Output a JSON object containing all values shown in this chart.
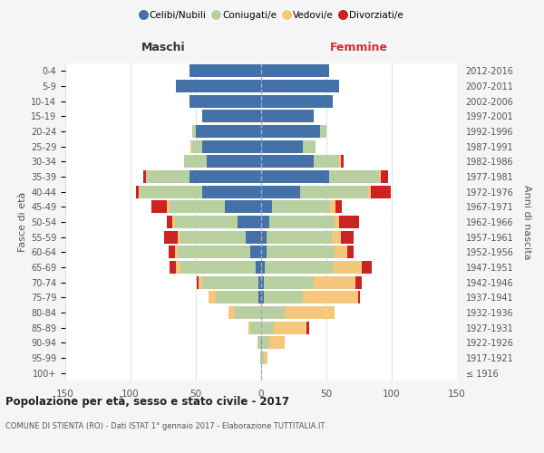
{
  "age_groups": [
    "100+",
    "95-99",
    "90-94",
    "85-89",
    "80-84",
    "75-79",
    "70-74",
    "65-69",
    "60-64",
    "55-59",
    "50-54",
    "45-49",
    "40-44",
    "35-39",
    "30-34",
    "25-29",
    "20-24",
    "15-19",
    "10-14",
    "5-9",
    "0-4"
  ],
  "birth_years": [
    "≤ 1916",
    "1917-1921",
    "1922-1926",
    "1927-1931",
    "1932-1936",
    "1937-1941",
    "1942-1946",
    "1947-1951",
    "1952-1956",
    "1957-1961",
    "1962-1966",
    "1967-1971",
    "1972-1976",
    "1977-1981",
    "1982-1986",
    "1987-1991",
    "1992-1996",
    "1997-2001",
    "2002-2006",
    "2007-2011",
    "2012-2016"
  ],
  "males": {
    "celibi": [
      0,
      0,
      0,
      0,
      0,
      2,
      2,
      4,
      8,
      12,
      18,
      28,
      45,
      55,
      42,
      45,
      50,
      45,
      55,
      65,
      55
    ],
    "coniugati": [
      0,
      1,
      3,
      8,
      20,
      33,
      43,
      58,
      56,
      50,
      48,
      42,
      48,
      33,
      17,
      8,
      3,
      0,
      0,
      0,
      0
    ],
    "vedovi": [
      0,
      0,
      0,
      2,
      5,
      5,
      3,
      3,
      2,
      2,
      2,
      2,
      1,
      0,
      0,
      1,
      0,
      0,
      0,
      0,
      0
    ],
    "divorziati": [
      0,
      0,
      0,
      0,
      0,
      0,
      1,
      5,
      5,
      10,
      4,
      12,
      2,
      2,
      0,
      0,
      0,
      0,
      0,
      0,
      0
    ]
  },
  "females": {
    "nubili": [
      0,
      0,
      1,
      0,
      0,
      2,
      2,
      3,
      4,
      4,
      6,
      8,
      30,
      52,
      40,
      32,
      45,
      40,
      55,
      60,
      52
    ],
    "coniugate": [
      0,
      2,
      5,
      10,
      18,
      30,
      38,
      52,
      52,
      50,
      50,
      45,
      52,
      38,
      20,
      10,
      5,
      0,
      0,
      0,
      0
    ],
    "vedove": [
      1,
      3,
      12,
      25,
      38,
      42,
      32,
      22,
      10,
      7,
      4,
      4,
      2,
      2,
      1,
      0,
      0,
      0,
      0,
      0,
      0
    ],
    "divorziate": [
      0,
      0,
      0,
      2,
      0,
      2,
      5,
      8,
      5,
      10,
      15,
      5,
      15,
      5,
      2,
      0,
      0,
      0,
      0,
      0,
      0
    ]
  },
  "colors": {
    "celibi": "#4472a8",
    "coniugati": "#b8cfa0",
    "vedovi": "#f5c77a",
    "divorziati": "#cc2222"
  },
  "title": "Popolazione per età, sesso e stato civile - 2017",
  "subtitle": "COMUNE DI STIENTA (RO) - Dati ISTAT 1° gennaio 2017 - Elaborazione TUTTITALIA.IT",
  "label_maschi": "Maschi",
  "label_femmine": "Femmine",
  "ylabel_left": "Fasce di età",
  "ylabel_right": "Anni di nascita",
  "xlim": 150,
  "background_color": "#f5f5f5",
  "plot_bg": "#ffffff",
  "legend_labels": [
    "Celibi/Nubili",
    "Coniugati/e",
    "Vedovi/e",
    "Divorziati/e"
  ]
}
